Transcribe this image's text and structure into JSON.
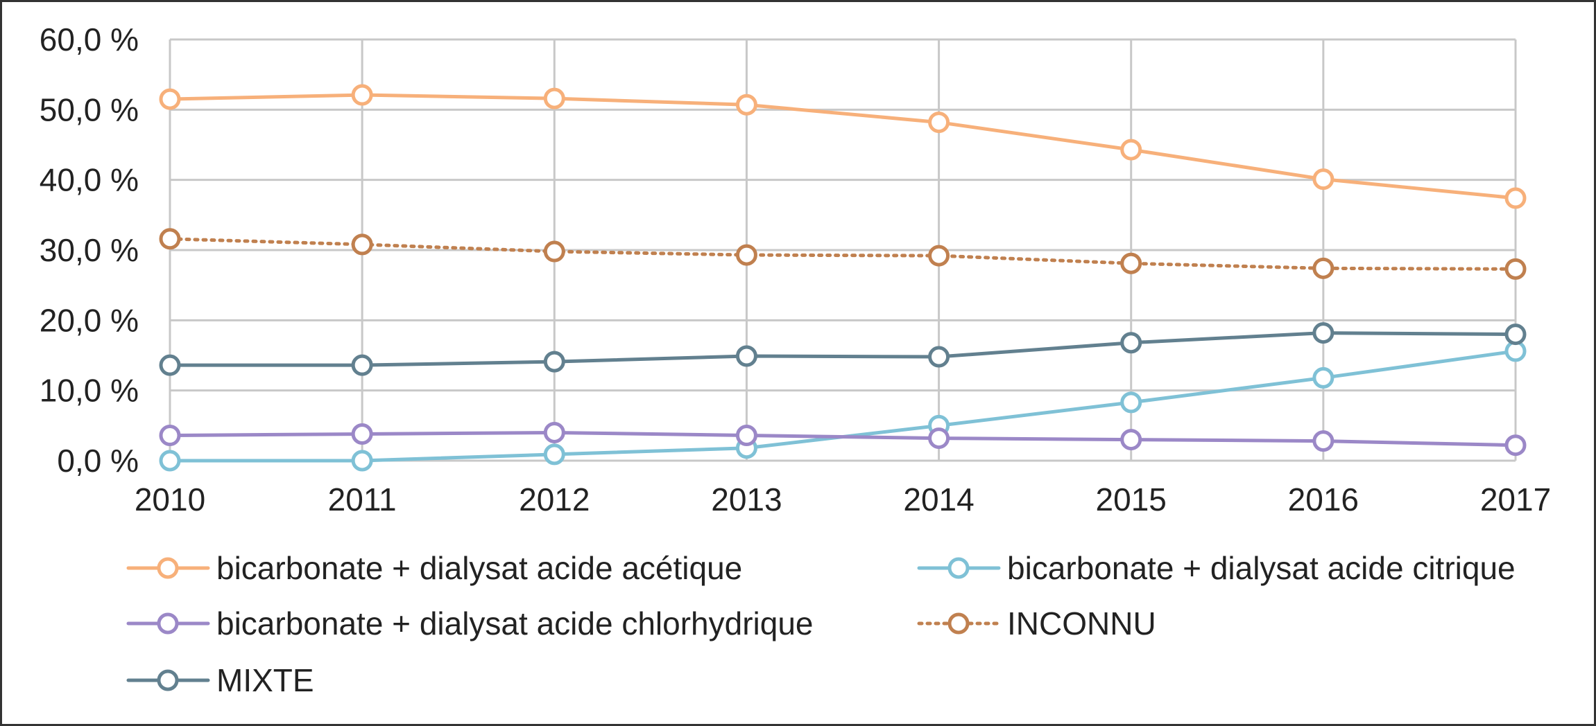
{
  "chart_data": {
    "type": "line",
    "title": "",
    "xlabel": "",
    "ylabel": "",
    "x": [
      "2010",
      "2011",
      "2012",
      "2013",
      "2014",
      "2015",
      "2016",
      "2017"
    ],
    "ylim": [
      0,
      60
    ],
    "yticks": [
      0,
      10,
      20,
      30,
      40,
      50,
      60
    ],
    "ytick_labels": [
      "0,0 %",
      "10,0 %",
      "20,0 %",
      "30,0 %",
      "40,0 %",
      "50,0 %",
      "60,0 %"
    ],
    "grid": true,
    "legend_position": "bottom",
    "series": [
      {
        "name": "bicarbonate + dialysat acide acétique",
        "color": "#F7B07A",
        "dash": "solid",
        "values": [
          51.5,
          52.1,
          51.6,
          50.7,
          48.2,
          44.3,
          40.1,
          37.4
        ]
      },
      {
        "name": "bicarbonate + dialysat acide citrique",
        "color": "#7FC1D6",
        "dash": "solid",
        "values": [
          0.0,
          0.0,
          0.9,
          1.8,
          5.0,
          8.3,
          11.8,
          15.6
        ]
      },
      {
        "name": "bicarbonate + dialysat acide chlorhydrique",
        "color": "#9B88C7",
        "dash": "solid",
        "values": [
          3.6,
          3.8,
          4.0,
          3.6,
          3.2,
          3.0,
          2.8,
          2.2
        ]
      },
      {
        "name": "INCONNU",
        "color": "#C0804F",
        "dash": "dotted",
        "values": [
          31.6,
          30.8,
          29.8,
          29.3,
          29.2,
          28.1,
          27.4,
          27.3
        ]
      },
      {
        "name": "MIXTE",
        "color": "#62808F",
        "dash": "solid",
        "values": [
          13.6,
          13.6,
          14.1,
          14.9,
          14.8,
          16.8,
          18.2,
          18.0
        ]
      }
    ]
  }
}
